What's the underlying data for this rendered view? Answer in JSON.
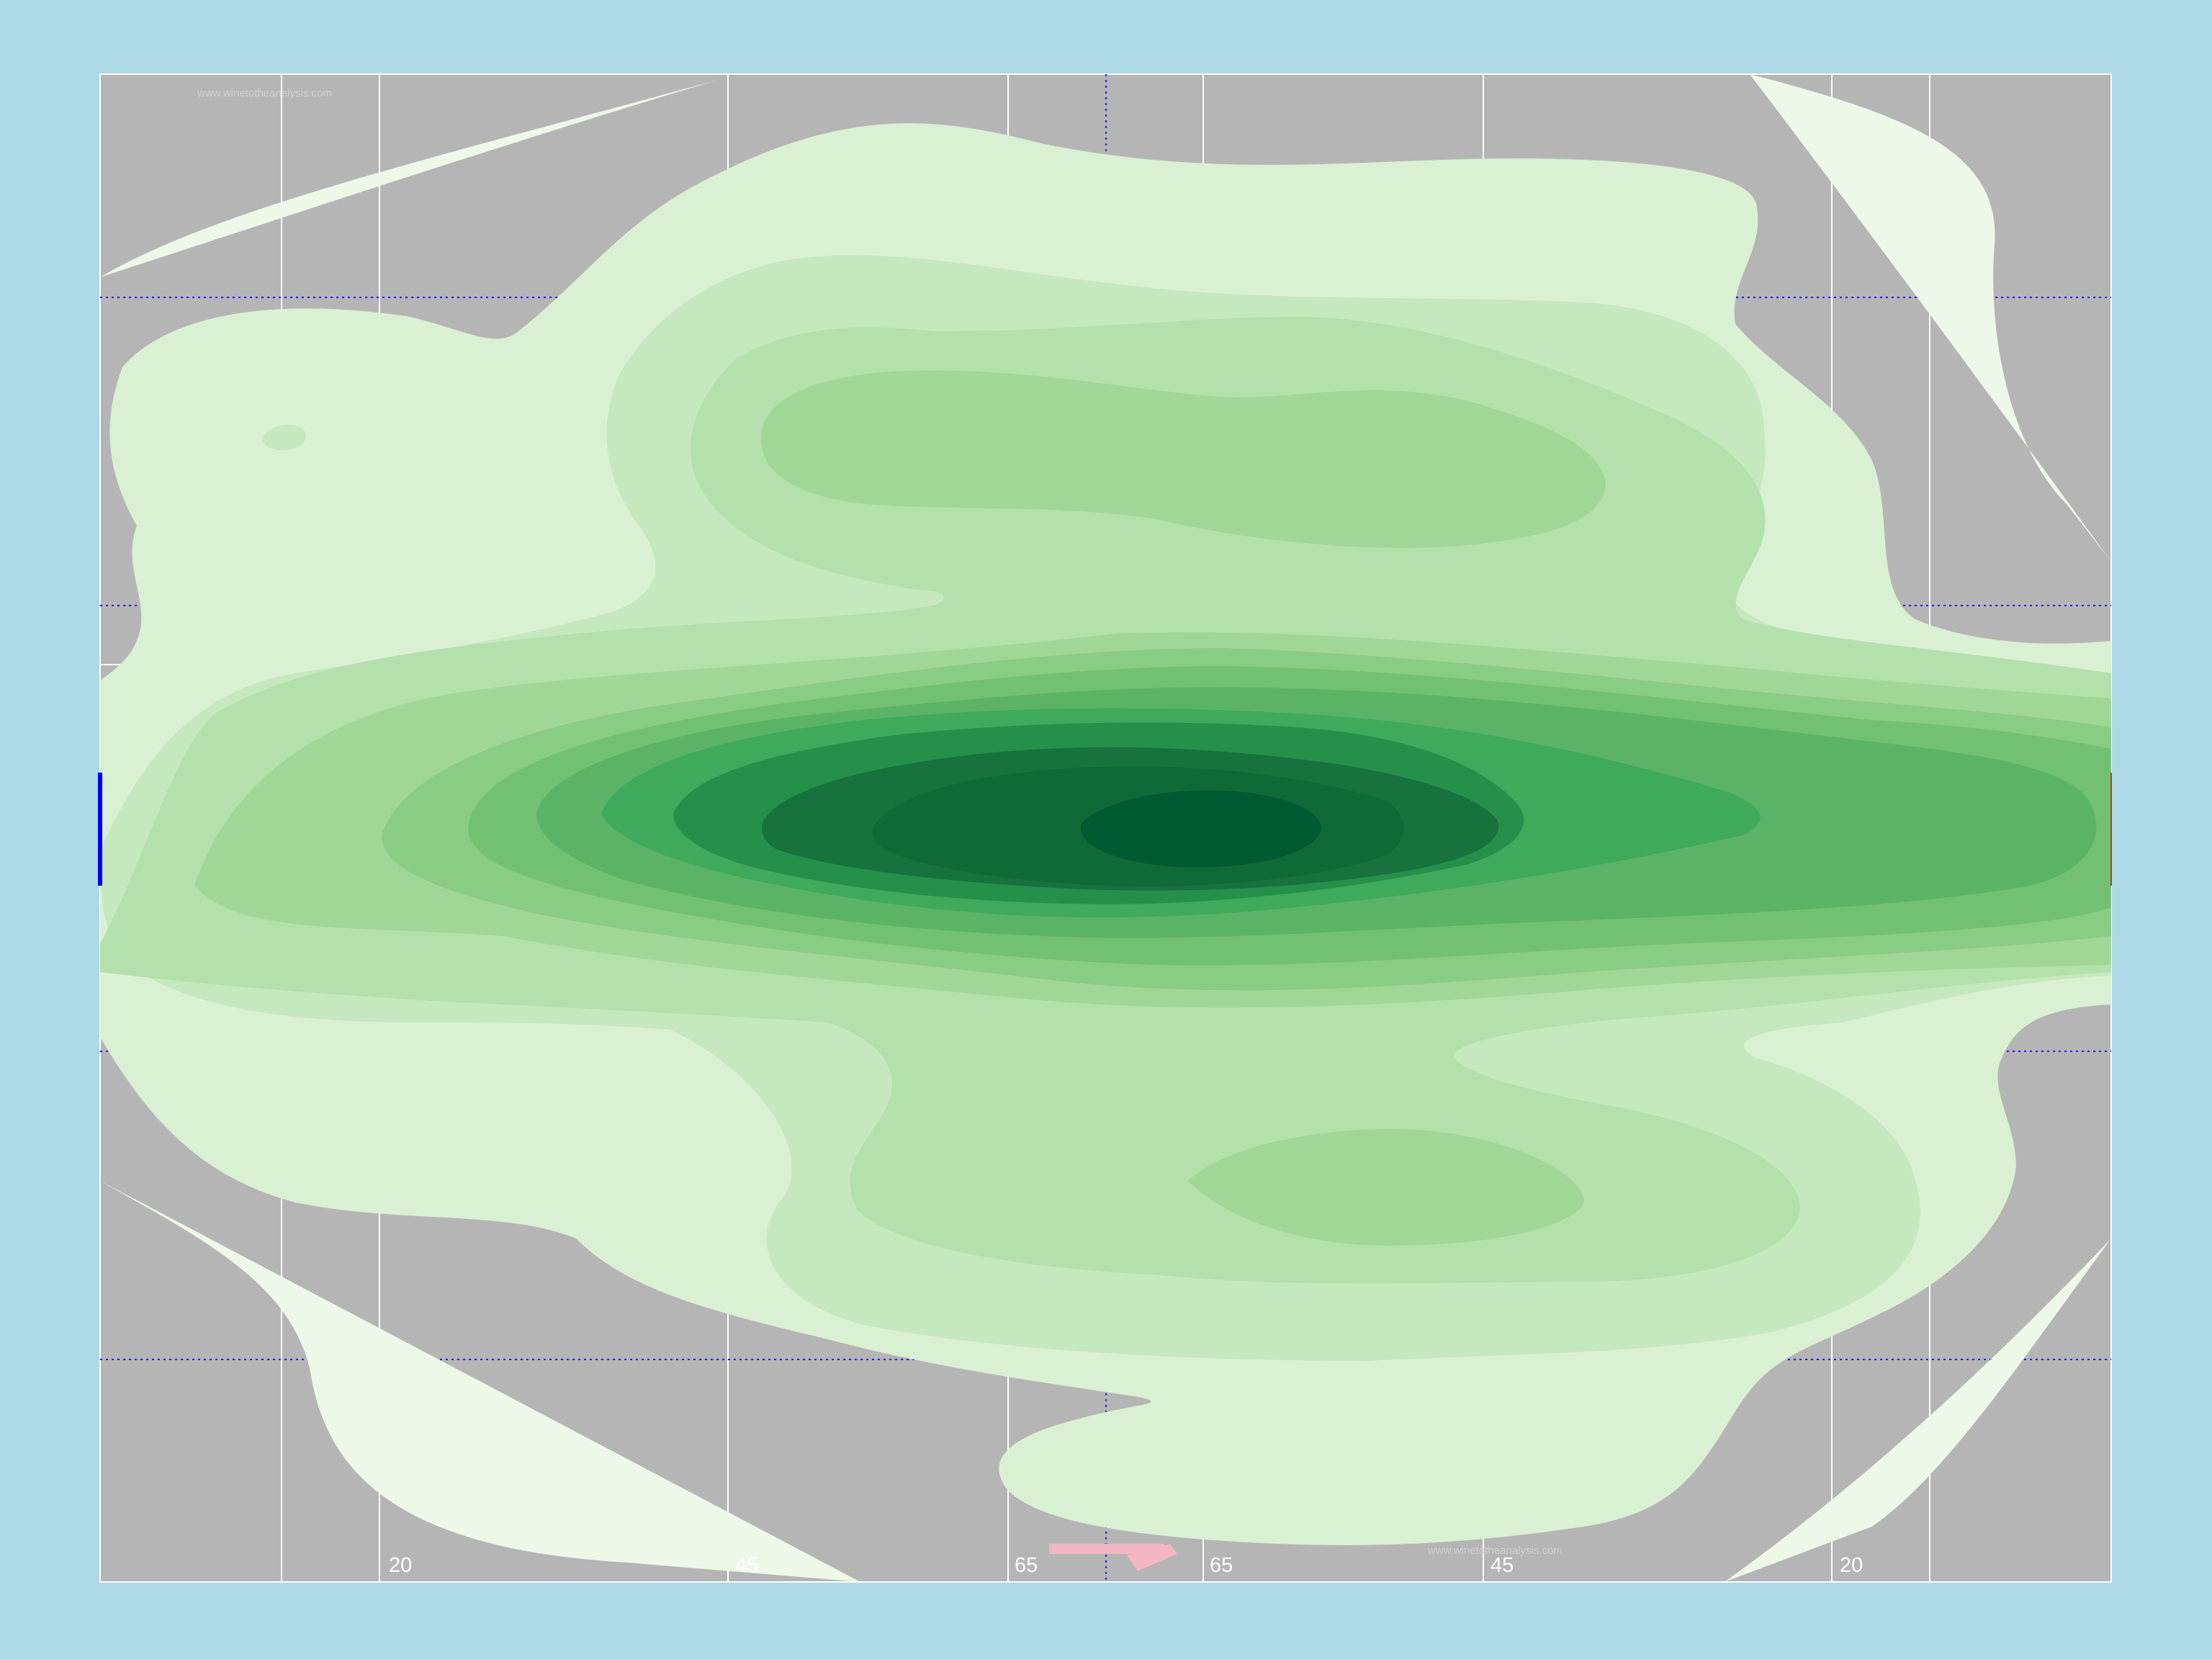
{
  "pitch": {
    "watermark_top": "www.winetotheanalysis.com",
    "watermark_bottom": "www.winetotheanalysis.com",
    "yard_labels": [
      "20",
      "45",
      "65",
      "65",
      "45",
      "20"
    ]
  },
  "colors": {
    "background": "#add8e6",
    "pitch": "#b5b5b5",
    "lines": "#ffffff",
    "guide_lines": "#1a1aff",
    "attack_marker": "#f4b6c2",
    "left_goal": "#0000ff",
    "right_goal": "#c0392b",
    "density_levels": [
      "#eef8e8",
      "#daf0d3",
      "#c6e8be",
      "#b3e0ab",
      "#a0d797",
      "#89cc84",
      "#72c172",
      "#5bb366",
      "#3fa95c",
      "#259049",
      "#17723e",
      "#005a32"
    ]
  }
}
